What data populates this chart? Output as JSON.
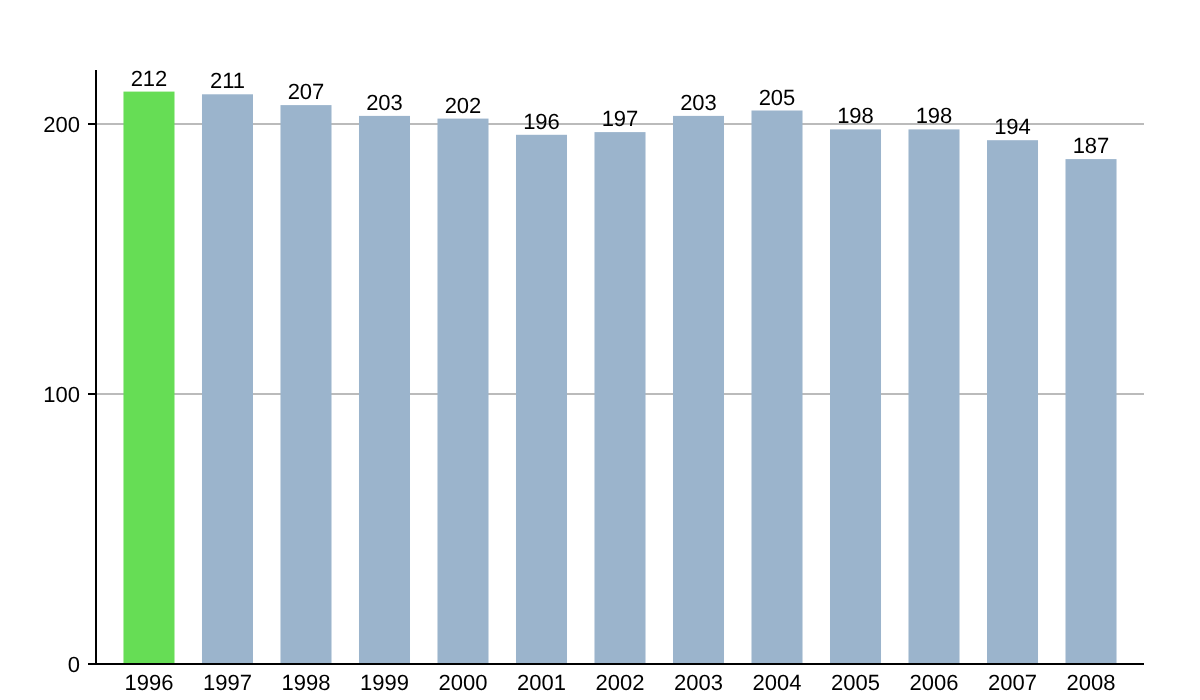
{
  "chart_data": {
    "type": "bar",
    "categories": [
      "1996",
      "1997",
      "1998",
      "1999",
      "2000",
      "2001",
      "2002",
      "2003",
      "2004",
      "2005",
      "2006",
      "2007",
      "2008"
    ],
    "values": [
      212,
      211,
      207,
      203,
      202,
      196,
      197,
      203,
      205,
      198,
      198,
      194,
      187
    ],
    "colors": [
      "#66dd55",
      "#9bb4cc",
      "#9bb4cc",
      "#9bb4cc",
      "#9bb4cc",
      "#9bb4cc",
      "#9bb4cc",
      "#9bb4cc",
      "#9bb4cc",
      "#9bb4cc",
      "#9bb4cc",
      "#9bb4cc",
      "#9bb4cc"
    ],
    "ylim": [
      0,
      220
    ],
    "yticks": [
      0,
      100,
      200
    ],
    "grid": "y",
    "data_labels": true
  }
}
